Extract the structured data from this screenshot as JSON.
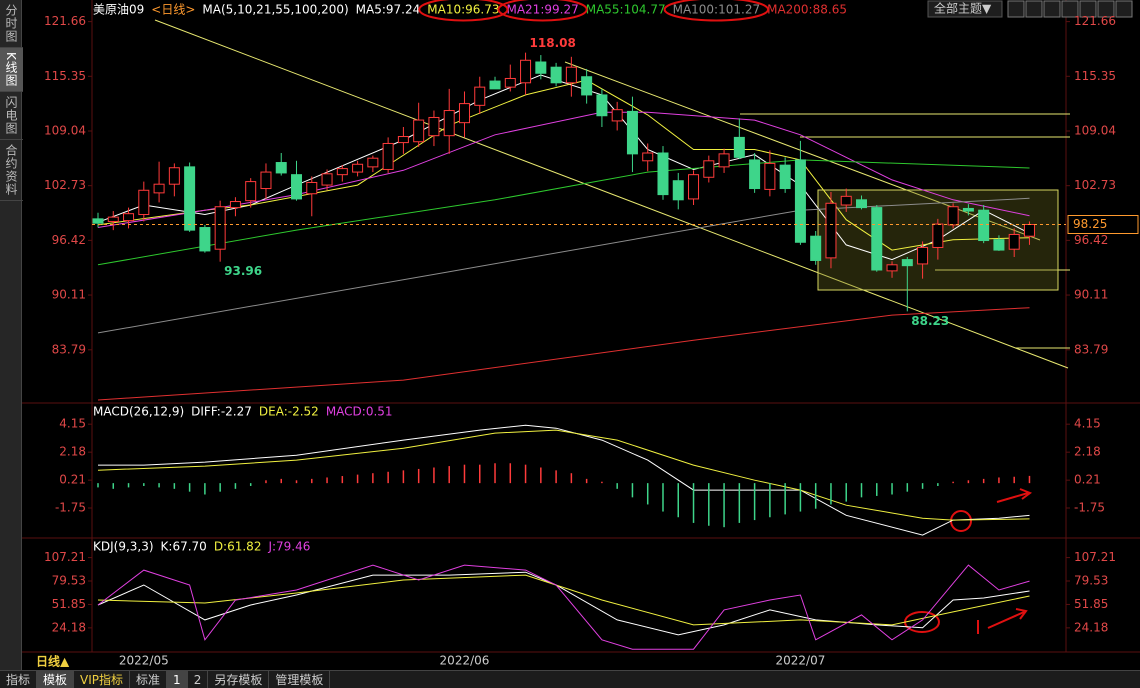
{
  "sidebar": {
    "tabs": [
      "分时图",
      "K线图",
      "闪电图",
      "合约资料"
    ]
  },
  "header": {
    "theme_button": "全部主题▼"
  },
  "toolbar": {
    "period": "日线▲",
    "tabs": [
      "指标",
      "模板",
      "VIP指标",
      "标准",
      "1",
      "2",
      "另存模板",
      "管理模板"
    ]
  },
  "chart_data": [
    {
      "type": "candlestick",
      "title": "美原油09",
      "subtitle": "<日线>",
      "indicator": "MA(5,10,21,55,100,200)",
      "up_color": "#ff3b3b",
      "down_color": "#3ed58a",
      "last_price_color": "#ff9a2e",
      "candles": {
        "open": [
          98.9,
          98.6,
          98.7,
          99.4,
          101.9,
          102.9,
          104.9,
          97.9,
          95.4,
          100.2,
          101.0,
          102.4,
          105.4,
          104.0,
          101.8,
          102.8,
          104.0,
          104.3,
          104.9,
          104.6,
          107.7,
          107.8,
          108.5,
          108.5,
          110.0,
          112.0,
          114.8,
          114.1,
          114.6,
          117.0,
          116.4,
          114.6,
          115.3,
          113.2,
          110.2,
          111.3,
          105.6,
          106.5,
          103.3,
          101.2,
          103.7,
          104.9,
          108.3,
          105.7,
          102.3,
          105.1,
          105.7,
          96.9,
          94.4,
          100.5,
          101.1,
          100.2,
          92.9,
          94.2,
          93.7,
          95.6,
          98.2,
          100.1,
          99.9,
          96.5,
          95.4,
          96.9
        ],
        "high": [
          99.6,
          99.8,
          100.2,
          103.2,
          105.5,
          105.3,
          105.4,
          98.2,
          101.0,
          101.4,
          103.6,
          105.3,
          106.5,
          105.6,
          103.8,
          104.6,
          105.1,
          105.6,
          106.2,
          108.3,
          109.5,
          112.3,
          111.4,
          113.9,
          113.6,
          115.3,
          115.3,
          116.7,
          118.08,
          117.8,
          116.9,
          117.6,
          116.2,
          113.9,
          112.4,
          113.0,
          107.6,
          107.3,
          104.2,
          104.5,
          106.2,
          107.0,
          110.5,
          106.5,
          106.8,
          106.0,
          107.9,
          97.5,
          102.0,
          102.4,
          101.6,
          100.5,
          94.0,
          94.5,
          96.3,
          98.9,
          100.7,
          100.6,
          100.5,
          97.0,
          97.8,
          98.6
        ],
        "low": [
          97.9,
          97.6,
          97.8,
          98.6,
          100.8,
          101.5,
          97.4,
          95.0,
          93.96,
          99.2,
          100.2,
          101.2,
          103.9,
          101.0,
          99.2,
          102.2,
          103.2,
          103.8,
          104.3,
          104.2,
          106.4,
          107.2,
          107.3,
          106.4,
          108.3,
          111.0,
          113.9,
          113.6,
          113.2,
          115.0,
          114.2,
          113.0,
          112.2,
          109.5,
          109.1,
          104.3,
          104.4,
          101.1,
          100.0,
          100.5,
          103.1,
          104.2,
          105.8,
          101.9,
          101.5,
          101.9,
          95.9,
          93.6,
          93.2,
          99.7,
          100.0,
          92.8,
          92.1,
          88.23,
          92.0,
          94.2,
          97.8,
          99.3,
          96.1,
          95.2,
          94.5,
          95.9
        ],
        "close": [
          98.4,
          99.1,
          99.5,
          102.2,
          102.9,
          104.8,
          97.6,
          95.2,
          100.3,
          100.9,
          103.2,
          104.3,
          104.2,
          101.2,
          103.1,
          104.1,
          104.7,
          105.2,
          105.9,
          107.6,
          108.4,
          110.3,
          110.6,
          111.4,
          112.2,
          114.1,
          113.9,
          115.1,
          117.2,
          115.7,
          114.6,
          116.4,
          113.2,
          110.8,
          111.5,
          106.4,
          106.5,
          101.7,
          101.1,
          104.0,
          105.6,
          106.4,
          106.0,
          102.4,
          105.3,
          102.4,
          96.2,
          94.1,
          100.7,
          101.5,
          100.2,
          93.0,
          93.6,
          93.5,
          95.6,
          98.3,
          100.3,
          99.8,
          96.4,
          95.3,
          97.1,
          98.25
        ]
      },
      "series": [
        {
          "name": "MA5:97.24",
          "color": "#ffffff",
          "x": [
            0,
            3,
            7,
            10,
            13,
            20,
            25,
            29,
            33,
            36,
            39,
            43,
            46,
            49,
            52,
            55,
            58,
            61
          ],
          "values": [
            98.5,
            100.5,
            99.4,
            100.5,
            102.8,
            108.0,
            112.6,
            115.5,
            113.2,
            106.9,
            104.6,
            106.3,
            102.8,
            95.9,
            94.2,
            96.5,
            99.9,
            97.24
          ]
        },
        {
          "name": "MA10:96.73",
          "color": "#f0f040",
          "x": [
            0,
            7,
            10,
            17,
            23,
            28,
            32,
            36,
            39,
            43,
            46,
            49,
            52,
            56,
            61
          ],
          "values": [
            98.2,
            99.9,
            100.5,
            102.8,
            109.7,
            113.2,
            114.9,
            110.9,
            106.9,
            106.9,
            105.7,
            98.8,
            95.3,
            96.5,
            96.73
          ]
        },
        {
          "name": "MA21:99.27",
          "color": "#e040e0",
          "x": [
            0,
            7,
            13,
            20,
            26,
            33,
            36,
            43,
            46,
            52,
            56,
            61
          ],
          "values": [
            97.9,
            99.9,
            101.7,
            104.5,
            108.6,
            111.2,
            111.2,
            110.3,
            108.6,
            103.4,
            101.1,
            99.27
          ]
        },
        {
          "name": "MA55:104.77",
          "color": "#2ec82e",
          "x": [
            0,
            13,
            26,
            36,
            46,
            61
          ],
          "values": [
            93.6,
            97.6,
            101.1,
            104.3,
            105.7,
            104.77
          ]
        },
        {
          "name": "MA100:101.27",
          "color": "#8c8c8c",
          "x": [
            0,
            23,
            46,
            61
          ],
          "values": [
            85.74,
            92.8,
            99.9,
            101.27
          ]
        },
        {
          "name": "MA200:88.65",
          "color": "#e03030",
          "x": [
            0,
            20,
            39,
            52,
            61
          ],
          "values": [
            78.0,
            80.3,
            84.9,
            87.8,
            88.65
          ]
        }
      ],
      "labels": [
        {
          "value": 118.08,
          "at": 28,
          "color": "#ff3b3b"
        },
        {
          "value": 93.96,
          "at": 8,
          "color": "#3ed58a"
        },
        {
          "value": 88.23,
          "at": 53,
          "color": "#3ed58a"
        }
      ],
      "date_labels": [
        {
          "text": "2022/05",
          "at": 3
        },
        {
          "text": "2022/06",
          "at": 24
        },
        {
          "text": "2022/07",
          "at": 46
        }
      ],
      "ylim": [
        78,
        123
      ],
      "yticks": [
        121.66,
        115.35,
        109.04,
        102.73,
        96.42,
        90.11,
        83.79
      ]
    },
    {
      "type": "macd",
      "title": "MACD(26,12,9)",
      "series": [
        {
          "name": "DIFF:-2.27",
          "color": "#ffffff",
          "x": [
            0,
            3,
            7,
            13,
            20,
            25,
            28,
            30,
            33,
            36,
            39,
            43,
            46,
            49,
            54,
            56,
            59,
            61
          ],
          "values": [
            1.27,
            1.27,
            1.48,
            1.97,
            3.03,
            3.73,
            4.08,
            3.87,
            3.03,
            1.62,
            -0.49,
            -0.49,
            -0.49,
            -2.26,
            -3.66,
            -2.6,
            -2.47,
            -2.27
          ]
        },
        {
          "name": "DEA:-2.52",
          "color": "#f0f040",
          "x": [
            0,
            7,
            13,
            20,
            26,
            30,
            34,
            39,
            43,
            46,
            49,
            54,
            56,
            61
          ],
          "values": [
            0.91,
            1.2,
            1.62,
            2.46,
            3.52,
            3.73,
            3.03,
            1.27,
            0.21,
            -0.49,
            -1.55,
            -2.47,
            -2.6,
            -2.52
          ]
        },
        {
          "name": "MACD:0.51",
          "color": "#e040e0",
          "up_color": "#ff3b3b",
          "down_color": "#3ed58a",
          "values": [
            -0.3,
            -0.4,
            -0.3,
            -0.2,
            -0.3,
            -0.4,
            -0.6,
            -0.8,
            -0.6,
            -0.4,
            -0.2,
            0.2,
            0.3,
            0.2,
            0.3,
            0.4,
            0.5,
            0.6,
            0.7,
            0.8,
            0.9,
            1.0,
            1.1,
            1.2,
            1.3,
            1.3,
            1.4,
            1.4,
            1.3,
            1.1,
            0.9,
            0.7,
            0.3,
            0.1,
            -0.4,
            -1.0,
            -1.5,
            -2.0,
            -2.4,
            -2.8,
            -3.0,
            -3.1,
            -2.8,
            -2.6,
            -2.4,
            -2.2,
            -2.0,
            -1.8,
            -1.5,
            -1.3,
            -1.0,
            -0.9,
            -0.8,
            -0.6,
            -0.4,
            -0.2,
            0.1,
            0.2,
            0.3,
            0.4,
            0.45,
            0.51
          ]
        }
      ],
      "ylim": [
        -3.65,
        5.5
      ],
      "yticks": [
        4.15,
        2.18,
        0.21,
        -1.75
      ]
    },
    {
      "type": "line",
      "title": "KDJ(9,3,3)",
      "series": [
        {
          "name": "K:67.70",
          "color": "#ffffff",
          "x": [
            0,
            3,
            7,
            10,
            13,
            18,
            23,
            28,
            30,
            34,
            38,
            41,
            44,
            47,
            51,
            54,
            56,
            58,
            61
          ],
          "values": [
            51.2,
            74.8,
            33.6,
            51.2,
            63,
            86.5,
            86.5,
            90,
            74.8,
            33.6,
            15.9,
            27.7,
            45.4,
            33.6,
            27.7,
            24.2,
            57.1,
            59.5,
            67.7
          ]
        },
        {
          "name": "D:61.82",
          "color": "#f0f040",
          "x": [
            0,
            7,
            13,
            20,
            28,
            33,
            39,
            46,
            52,
            56,
            61
          ],
          "values": [
            57.1,
            53.6,
            65.4,
            80.7,
            86.5,
            57.1,
            27.7,
            33.6,
            27.7,
            43,
            61.82
          ]
        },
        {
          "name": "J:79.46",
          "color": "#e040e0",
          "x": [
            0,
            3,
            6,
            7,
            9,
            13,
            18,
            21,
            24,
            28,
            30,
            33,
            35,
            39,
            41,
            44,
            46,
            47,
            50,
            52,
            54,
            57,
            59,
            61
          ],
          "values": [
            51.2,
            92.4,
            74.8,
            10,
            57,
            68.9,
            98.3,
            80.7,
            98.3,
            92.4,
            74.8,
            10,
            -1,
            -1,
            45.4,
            57.1,
            63,
            10,
            39.5,
            10,
            33.6,
            98.3,
            68.9,
            79.46
          ]
        }
      ],
      "ylim": [
        -2,
        128
      ],
      "yticks": [
        107.21,
        79.53,
        51.85,
        24.18
      ]
    }
  ]
}
